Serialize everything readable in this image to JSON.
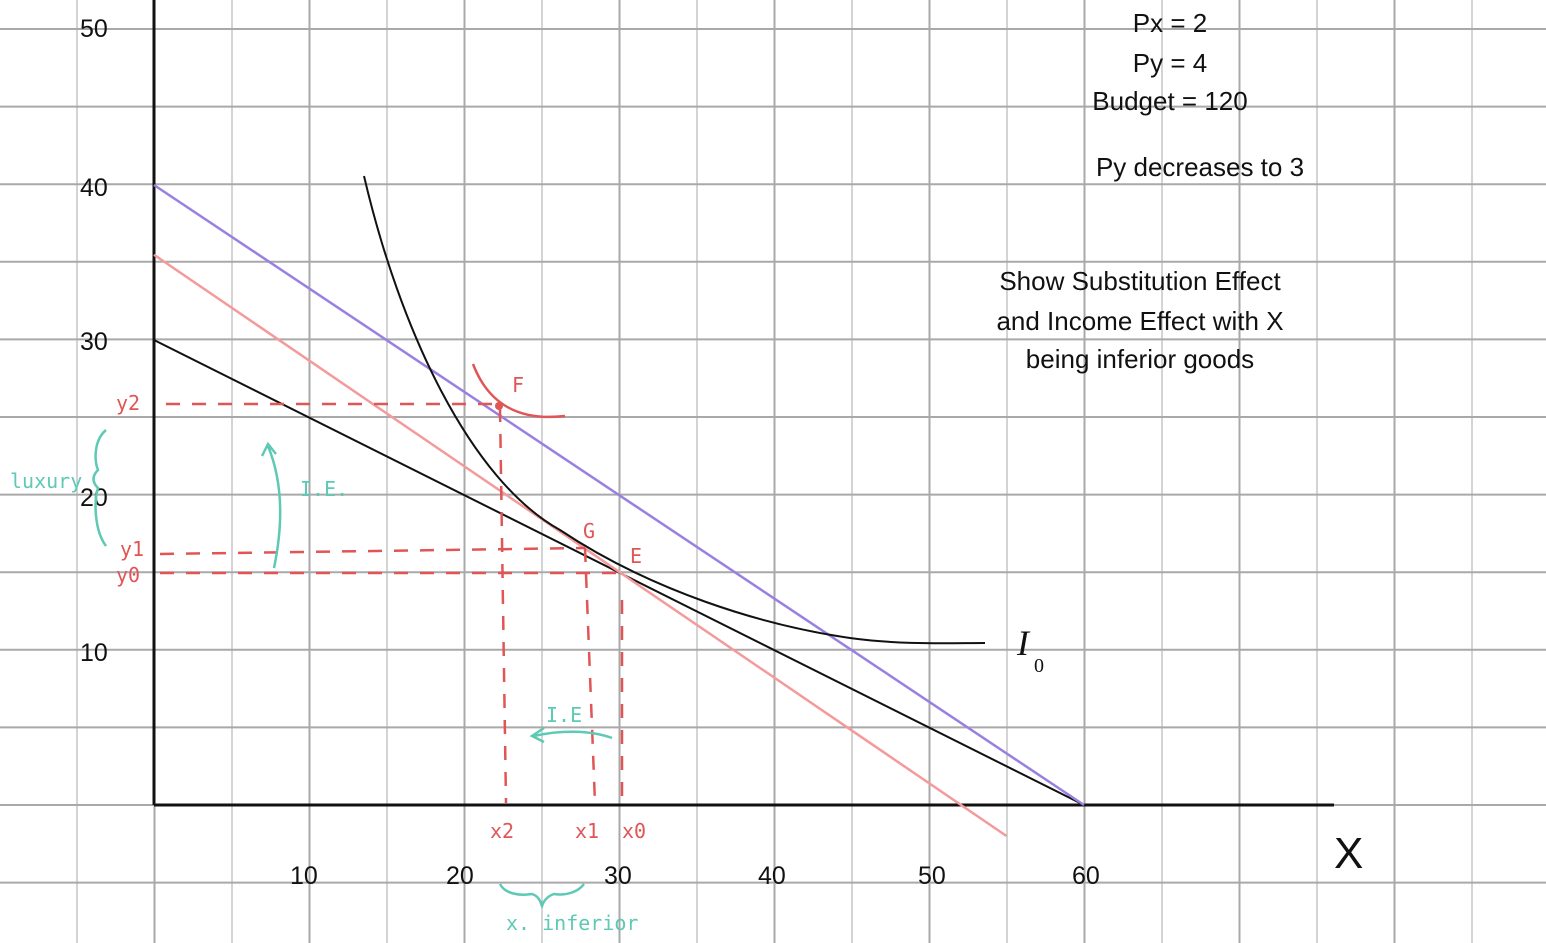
{
  "notes": {
    "px": "Px = 2",
    "py": "Py = 4",
    "budget": "Budget = 120",
    "change": "Py  decreases to 3",
    "task_line1": "Show Substitution Effect",
    "task_line2": "and Income Effect with X",
    "task_line3": "being inferior goods"
  },
  "axes": {
    "x_label": "X",
    "x_ticks": [
      "10",
      "20",
      "30",
      "40",
      "50",
      "60"
    ],
    "y_ticks": [
      "10",
      "20",
      "30",
      "40",
      "50"
    ]
  },
  "curve_label": {
    "main": "I",
    "sub": "0"
  },
  "points": {
    "F": "F",
    "G": "G",
    "E": "E"
  },
  "handwritten": {
    "y2": "y2",
    "y1": "y1",
    "y0": "y0",
    "x2": "x2",
    "x1": "x1",
    "x0": "x0",
    "luxury": "luxury",
    "ie_vertical": "I.E.",
    "ie_horizontal": "I.E",
    "x_inferior": "x. inferior"
  },
  "colors": {
    "original_budget": "#111111",
    "new_budget": "#9b7fe0",
    "compensated_budget": "#f59a9a",
    "annotation_red": "#e05555",
    "annotation_teal": "#5ec9b4",
    "grid": "#a9a9a9"
  },
  "chart_data": {
    "type": "line",
    "xlim": [
      0,
      70
    ],
    "ylim": [
      0,
      50
    ],
    "series": [
      {
        "values": [
          [
            0,
            30
          ],
          [
            60,
            0
          ]
        ]
      },
      {
        "values": [
          [
            0,
            40
          ],
          [
            60,
            0
          ]
        ]
      },
      {
        "values": [
          [
            0,
            35.5
          ],
          [
            55,
            -2
          ]
        ]
      }
    ],
    "equilibria": {
      "E": [
        30,
        15
      ],
      "G": [
        28,
        16.5
      ],
      "F": [
        22,
        26
      ]
    }
  }
}
